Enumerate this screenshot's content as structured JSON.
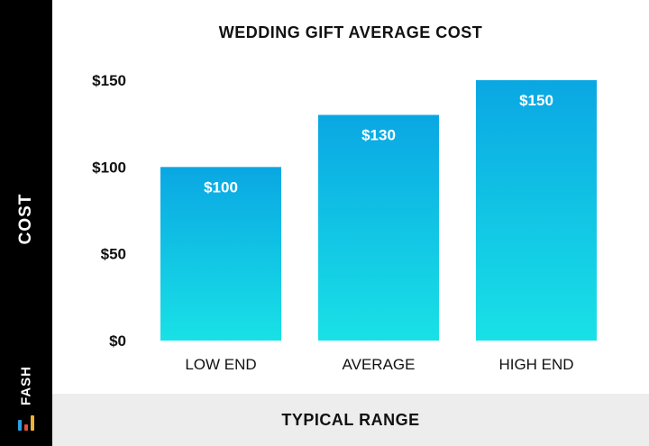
{
  "chart_data": {
    "type": "bar",
    "title": "WEDDING GIFT AVERAGE COST",
    "xlabel": "TYPICAL RANGE",
    "ylabel": "COST",
    "categories": [
      "LOW END",
      "AVERAGE",
      "HIGH END"
    ],
    "values": [
      100,
      130,
      150
    ],
    "value_labels": [
      "$100",
      "$130",
      "$150"
    ],
    "ylim": [
      0,
      150
    ],
    "yticks": [
      0,
      50,
      100,
      150
    ],
    "ytick_labels": [
      "$0",
      "$50",
      "$100",
      "$150"
    ],
    "grid": false,
    "legend": "none"
  },
  "brand": {
    "name": "FASH"
  },
  "colors": {
    "bar_top": "#0aa7e3",
    "bar_bottom": "#19e1e6",
    "brand_marks": [
      "#2b9fe0",
      "#e84c3d",
      "#f2b233"
    ]
  }
}
